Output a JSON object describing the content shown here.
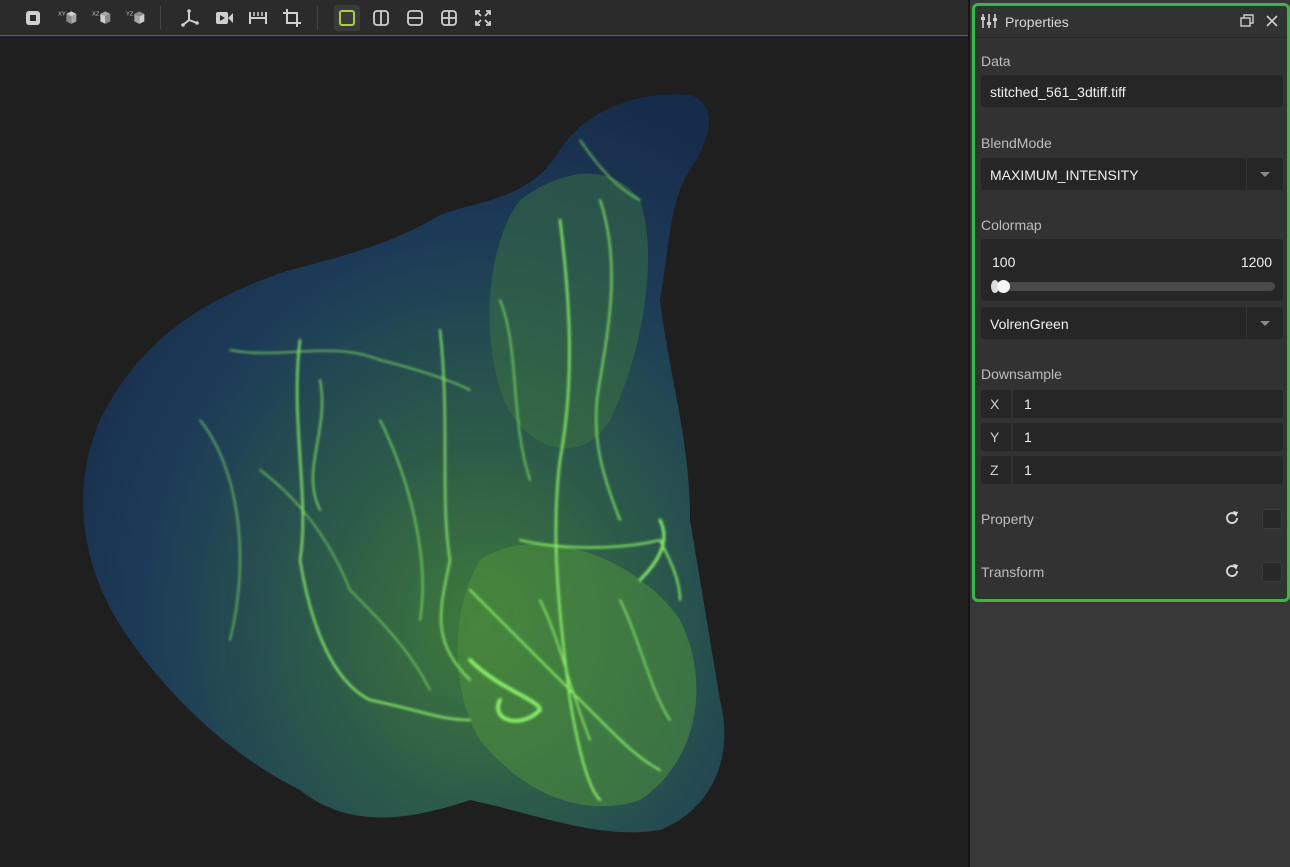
{
  "toolbar": {
    "buttons": [
      {
        "name": "reset-view-icon"
      },
      {
        "name": "view-xy-icon",
        "tag": "XY"
      },
      {
        "name": "view-xz-icon",
        "tag": "XZ"
      },
      {
        "name": "view-yz-icon",
        "tag": "YZ"
      },
      {
        "name": "axes-icon"
      },
      {
        "name": "record-video-icon"
      },
      {
        "name": "measure-ruler-icon"
      },
      {
        "name": "crop-icon"
      },
      {
        "name": "layout-single-icon",
        "active": true
      },
      {
        "name": "layout-split-vertical-icon"
      },
      {
        "name": "layout-split-horizontal-icon"
      },
      {
        "name": "layout-quad-icon"
      },
      {
        "name": "fullscreen-icon"
      }
    ]
  },
  "properties": {
    "title": "Properties",
    "data_label": "Data",
    "data_value": "stitched_561_3dtiff.tiff",
    "blendmode_label": "BlendMode",
    "blendmode_value": "MAXIMUM_INTENSITY",
    "colormap_label": "Colormap",
    "colormap_min": "100",
    "colormap_max": "1200",
    "colormap_name": "VolrenGreen",
    "downsample_label": "Downsample",
    "downsample": [
      {
        "axis": "X",
        "value": "1"
      },
      {
        "axis": "Y",
        "value": "1"
      },
      {
        "axis": "Z",
        "value": "1"
      }
    ],
    "property_label": "Property",
    "transform_label": "Transform"
  },
  "colors": {
    "accent": "#3ab54a",
    "volume_green": "#7cf06a",
    "volume_dark": "#1c3a5a"
  }
}
